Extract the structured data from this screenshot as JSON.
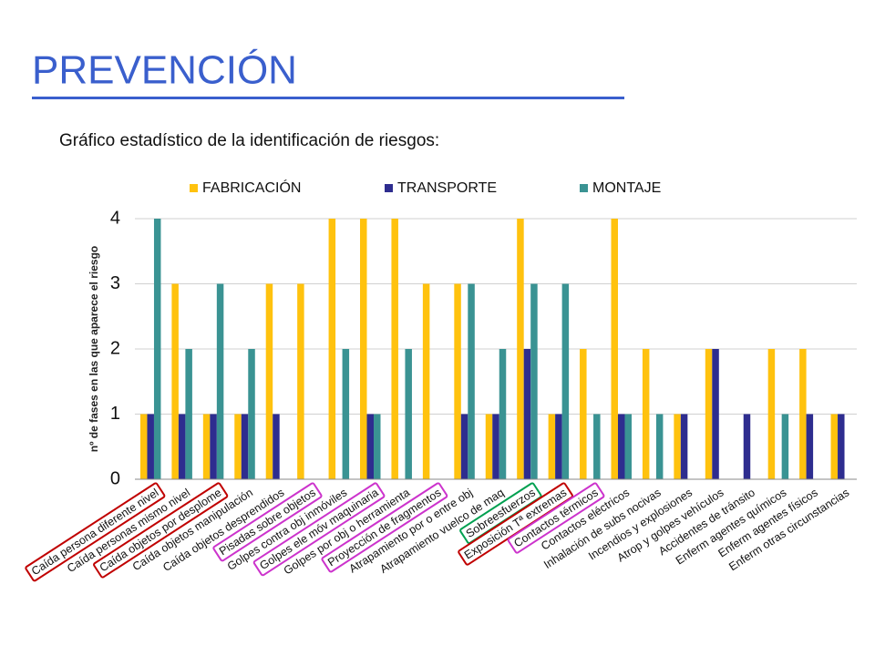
{
  "header": {
    "title": "Prevención",
    "subtitle": "Gráfico estadístico de la identificación de riesgos:"
  },
  "chart_data": {
    "type": "bar",
    "ylabel": "nº de fases en las que aparece el riesgo",
    "categories": [
      "Caída persona diferente nivel",
      "Caída personas mismo nivel",
      "Caída objetos por desplome",
      "Caída objetos manipulación",
      "Caída objetos desprendidos",
      "Pisadas sobre objetos",
      "Golpes contra obj inmóviles",
      "Golpes ele móv maquinaria",
      "Golpes por obj o herramienta",
      "Proyección de fragmentos",
      "Atrapamiento por o entre obj",
      "Atrapamiento vuelco de maq",
      "Sobreesfuerzos",
      "Exposición Tª extremas",
      "Contactos térmicos",
      "Contactos eléctricos",
      "Inhalación de subs nocivas",
      "Incendios y explosiones",
      "Atrop y golpes vehículos",
      "Accidentes de tránsito",
      "Enferm agentes químicos",
      "Enferm agentes físicos",
      "Enferm otras circunstancias"
    ],
    "label_highlights": [
      "#c00000",
      null,
      "#c00000",
      null,
      null,
      "#cc33cc",
      null,
      "#cc33cc",
      null,
      "#cc33cc",
      null,
      null,
      "#00a050",
      "#c00000",
      "#cc33cc",
      null,
      null,
      null,
      null,
      null,
      null,
      null,
      null
    ],
    "series": [
      {
        "name": "FABRICACIÓN",
        "color": "#ffc20e",
        "values": [
          1,
          3,
          1,
          1,
          3,
          3,
          4,
          4,
          4,
          3,
          3,
          1,
          4,
          1,
          2,
          4,
          2,
          1,
          2,
          0,
          2,
          2,
          1
        ]
      },
      {
        "name": "TRANSPORTE",
        "color": "#2e2d8f",
        "values": [
          1,
          1,
          1,
          1,
          1,
          0,
          0,
          1,
          0,
          0,
          1,
          1,
          2,
          1,
          0,
          1,
          0,
          1,
          2,
          1,
          0,
          1,
          1
        ]
      },
      {
        "name": "MONTAJE",
        "color": "#3a9393",
        "values": [
          4,
          2,
          3,
          2,
          0,
          0,
          2,
          1,
          2,
          0,
          3,
          2,
          3,
          3,
          1,
          1,
          1,
          0,
          0,
          0,
          1,
          0,
          0
        ]
      }
    ],
    "ylim": [
      0,
      4
    ],
    "yticks": [
      0,
      1,
      2,
      3,
      4
    ],
    "grid": true,
    "legend": "top"
  }
}
